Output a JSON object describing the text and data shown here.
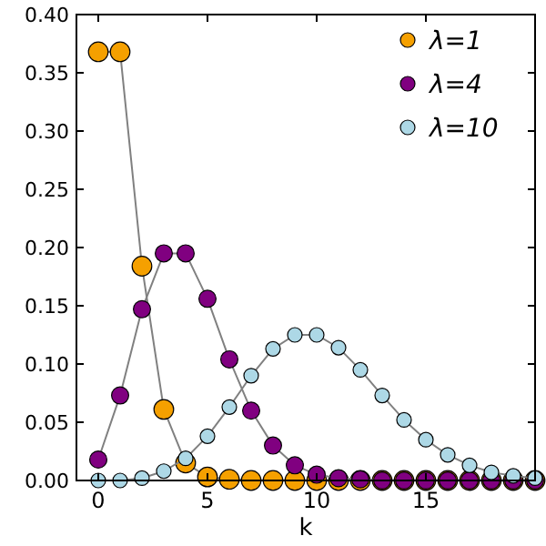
{
  "chart_data": {
    "type": "line",
    "xlabel": "k",
    "x": [
      0,
      1,
      2,
      3,
      4,
      5,
      6,
      7,
      8,
      9,
      10,
      11,
      12,
      13,
      14,
      15,
      16,
      17,
      18,
      19,
      20
    ],
    "series": [
      {
        "name": "λ=1",
        "color": "#f5a000",
        "values": [
          0.368,
          0.368,
          0.184,
          0.061,
          0.015,
          0.003,
          0.001,
          0,
          0,
          0,
          0,
          0,
          0,
          0,
          0,
          0,
          0,
          0,
          0,
          0,
          0
        ]
      },
      {
        "name": "λ=4",
        "color": "#800080",
        "values": [
          0.018,
          0.073,
          0.147,
          0.195,
          0.195,
          0.156,
          0.104,
          0.06,
          0.03,
          0.013,
          0.005,
          0.002,
          0.001,
          0,
          0,
          0,
          0,
          0,
          0,
          0,
          0
        ]
      },
      {
        "name": "λ=10",
        "color": "#add8e6",
        "values": [
          0,
          0,
          0.002,
          0.008,
          0.019,
          0.038,
          0.063,
          0.09,
          0.113,
          0.125,
          0.125,
          0.114,
          0.095,
          0.073,
          0.052,
          0.035,
          0.022,
          0.013,
          0.007,
          0.004,
          0.002
        ]
      }
    ],
    "xlim": [
      -1,
      20
    ],
    "xticks": [
      0,
      5,
      10,
      15
    ],
    "ylim": [
      0,
      0.4
    ],
    "yticks": [
      {
        "value": 0,
        "label": "0.00"
      },
      {
        "value": 0.05,
        "label": "0.05"
      },
      {
        "value": 0.1,
        "label": "0.10"
      },
      {
        "value": 0.15,
        "label": "0.15"
      },
      {
        "value": 0.2,
        "label": "0.20"
      },
      {
        "value": 0.25,
        "label": "0.25"
      },
      {
        "value": 0.3,
        "label": "0.30"
      },
      {
        "value": 0.35,
        "label": "0.35"
      },
      {
        "value": 0.4,
        "label": "0.40"
      }
    ],
    "grid": false,
    "legend": "top right",
    "marker": "circle",
    "line_style": "solid"
  }
}
